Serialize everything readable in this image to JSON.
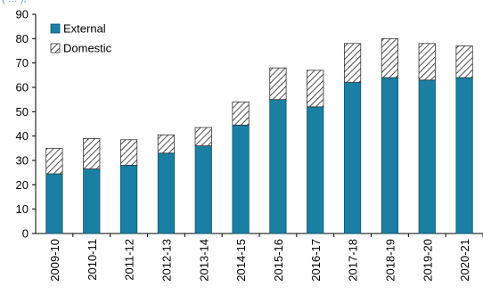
{
  "crop_text": "( … ),",
  "colors": {
    "external": "#1a7fa3",
    "external_stroke": "#0f5570",
    "hatch_line": "#222222",
    "axis": "#000000",
    "grid": "#bfbfbf",
    "text": "#000000"
  },
  "chart_data": {
    "type": "bar",
    "stacked": true,
    "categories": [
      "2009-10",
      "2010-11",
      "2011-12",
      "2012-13",
      "2013-14",
      "2014-15",
      "2015-16",
      "2016-17",
      "2017-18",
      "2018-19",
      "2019-20",
      "2020-21"
    ],
    "series": [
      {
        "name": "External",
        "values": [
          24.5,
          26.5,
          28,
          33,
          36,
          44.5,
          55,
          52,
          62,
          64,
          63,
          64
        ],
        "fill": "solid"
      },
      {
        "name": "Domestic",
        "values": [
          10.5,
          12.5,
          10.5,
          7.5,
          7.5,
          9.5,
          13,
          15,
          16,
          16,
          15,
          13
        ],
        "fill": "hatched"
      }
    ],
    "title": "",
    "xlabel": "",
    "ylabel": "",
    "ylim": [
      0,
      90
    ],
    "yticks": [
      0,
      10,
      20,
      30,
      40,
      50,
      60,
      70,
      80,
      90
    ],
    "grid": "none",
    "legend_position": "top-left"
  }
}
